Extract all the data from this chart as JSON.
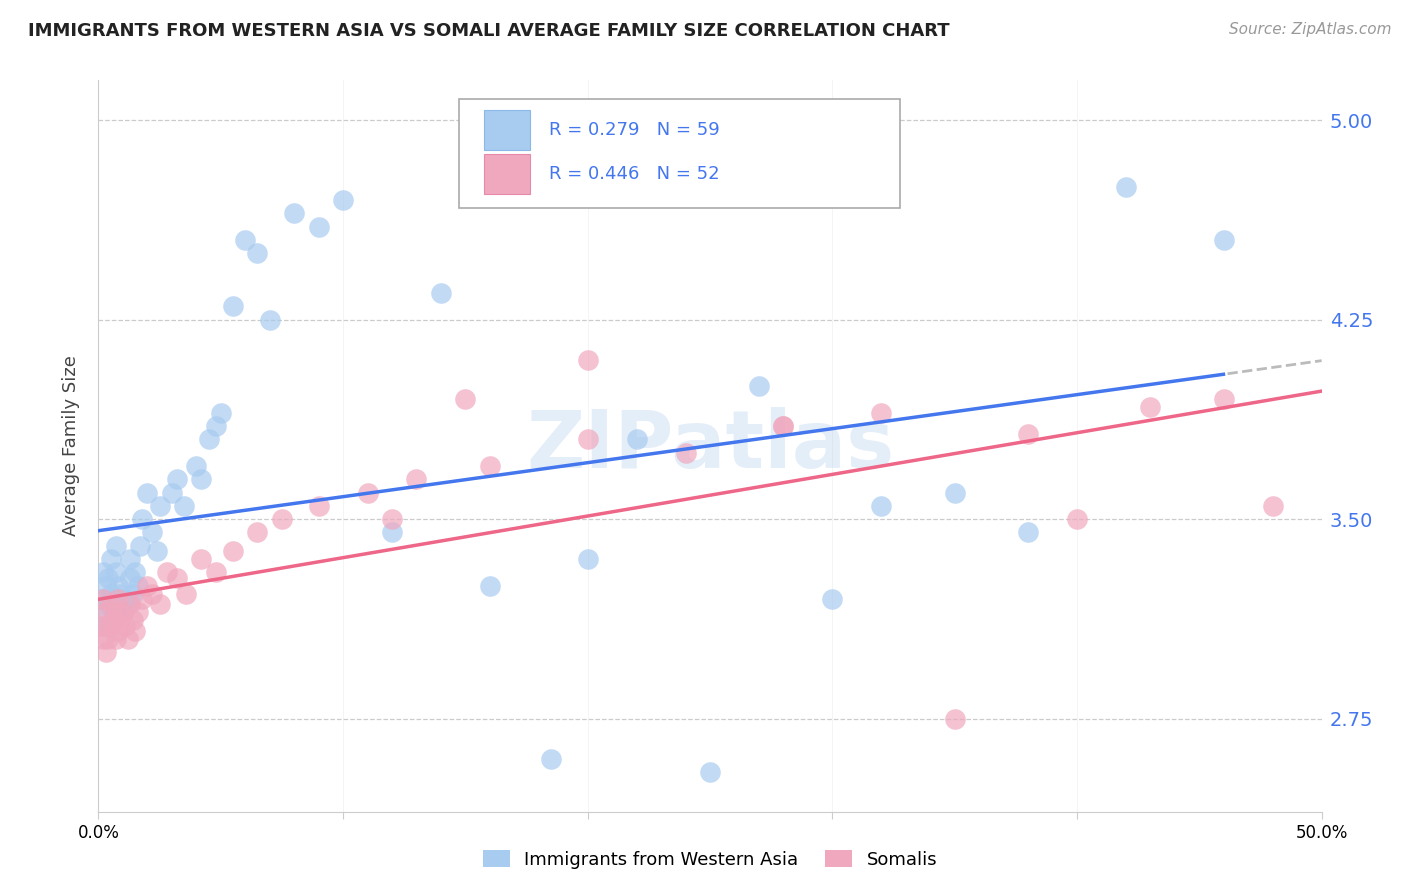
{
  "title": "IMMIGRANTS FROM WESTERN ASIA VS SOMALI AVERAGE FAMILY SIZE CORRELATION CHART",
  "source": "Source: ZipAtlas.com",
  "ylabel": "Average Family Size",
  "legend_label1": "Immigrants from Western Asia",
  "legend_label2": "Somalis",
  "r1": "0.279",
  "n1": "59",
  "r2": "0.446",
  "n2": "52",
  "yticks": [
    2.75,
    3.5,
    4.25,
    5.0
  ],
  "xtick_labels": [
    "0.0%",
    "",
    "",
    "",
    "",
    "50.0%"
  ],
  "xlim": [
    0.0,
    0.5
  ],
  "ylim": [
    2.4,
    5.15
  ],
  "color_blue": "#a8cbf0",
  "color_pink": "#f0a8be",
  "color_blue_line": "#4477ee",
  "color_pink_line": "#ee6688",
  "color_dashed_line": "#bbbbbb",
  "color_grid": "#cccccc",
  "color_ytick": "#4477ee",
  "watermark": "ZIPatlas",
  "blue_points_x": [
    0.001,
    0.002,
    0.002,
    0.003,
    0.003,
    0.004,
    0.004,
    0.005,
    0.005,
    0.006,
    0.006,
    0.007,
    0.007,
    0.008,
    0.008,
    0.009,
    0.01,
    0.011,
    0.012,
    0.013,
    0.013,
    0.014,
    0.015,
    0.016,
    0.017,
    0.018,
    0.02,
    0.022,
    0.024,
    0.025,
    0.03,
    0.032,
    0.035,
    0.04,
    0.042,
    0.045,
    0.048,
    0.05,
    0.055,
    0.06,
    0.065,
    0.07,
    0.08,
    0.09,
    0.1,
    0.12,
    0.14,
    0.16,
    0.185,
    0.2,
    0.22,
    0.25,
    0.27,
    0.3,
    0.32,
    0.35,
    0.38,
    0.42,
    0.46
  ],
  "blue_points_y": [
    3.2,
    3.3,
    3.15,
    3.25,
    3.1,
    3.28,
    3.18,
    3.22,
    3.35,
    3.2,
    3.15,
    3.4,
    3.3,
    3.25,
    3.18,
    3.22,
    3.15,
    3.2,
    3.18,
    3.35,
    3.28,
    3.22,
    3.3,
    3.25,
    3.4,
    3.5,
    3.6,
    3.45,
    3.38,
    3.55,
    3.6,
    3.65,
    3.55,
    3.7,
    3.65,
    3.8,
    3.85,
    3.9,
    4.3,
    4.55,
    4.5,
    4.25,
    4.65,
    4.6,
    4.7,
    3.45,
    4.35,
    3.25,
    2.6,
    3.35,
    3.8,
    2.55,
    4.0,
    3.2,
    3.55,
    3.6,
    3.45,
    4.75,
    4.55
  ],
  "pink_points_x": [
    0.001,
    0.002,
    0.002,
    0.003,
    0.003,
    0.004,
    0.004,
    0.005,
    0.005,
    0.006,
    0.007,
    0.007,
    0.008,
    0.008,
    0.009,
    0.01,
    0.011,
    0.012,
    0.013,
    0.014,
    0.015,
    0.016,
    0.018,
    0.02,
    0.022,
    0.025,
    0.028,
    0.032,
    0.036,
    0.042,
    0.048,
    0.055,
    0.065,
    0.075,
    0.09,
    0.11,
    0.13,
    0.16,
    0.2,
    0.24,
    0.28,
    0.32,
    0.38,
    0.43,
    0.35,
    0.48,
    0.46,
    0.28,
    0.12,
    0.2,
    0.15,
    0.4
  ],
  "pink_points_y": [
    3.1,
    3.2,
    3.05,
    3.15,
    3.0,
    3.1,
    3.05,
    3.18,
    3.1,
    3.12,
    3.05,
    3.15,
    3.2,
    3.08,
    3.12,
    3.15,
    3.1,
    3.05,
    3.18,
    3.12,
    3.08,
    3.15,
    3.2,
    3.25,
    3.22,
    3.18,
    3.3,
    3.28,
    3.22,
    3.35,
    3.3,
    3.38,
    3.45,
    3.5,
    3.55,
    3.6,
    3.65,
    3.7,
    3.8,
    3.75,
    3.85,
    3.9,
    3.82,
    3.92,
    2.75,
    3.55,
    3.95,
    3.85,
    3.5,
    4.1,
    3.95,
    3.5
  ]
}
